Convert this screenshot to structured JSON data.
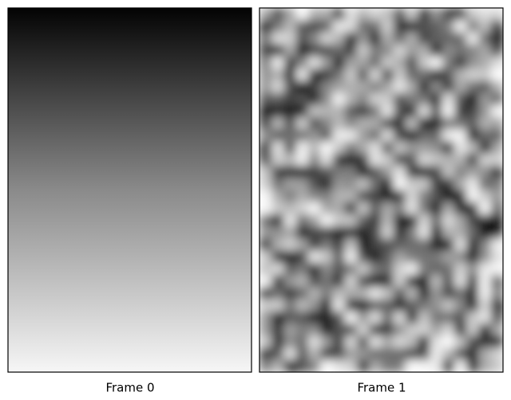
{
  "panels": [
    {
      "label": "Frame 0"
    },
    {
      "label": "Frame 1"
    }
  ]
}
